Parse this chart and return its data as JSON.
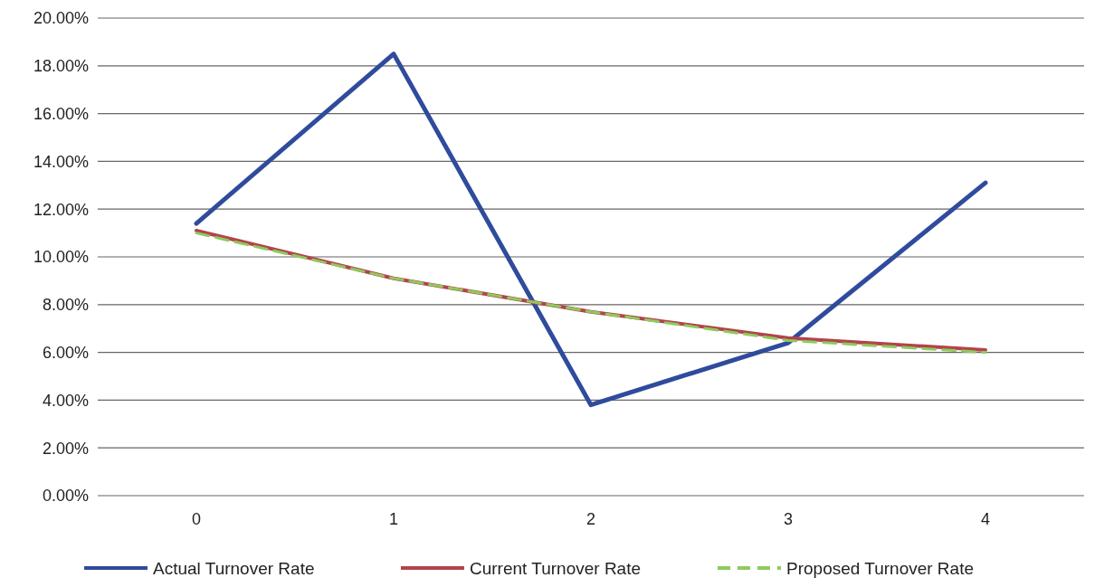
{
  "chart_data": {
    "type": "line",
    "categories": [
      "0",
      "1",
      "2",
      "3",
      "4"
    ],
    "series": [
      {
        "name": "Actual Turnover Rate",
        "color": "#2f4b9c",
        "values": [
          11.4,
          18.5,
          3.8,
          6.4,
          13.1
        ]
      },
      {
        "name": "Current Turnover Rate",
        "color": "#b2444c",
        "values": [
          11.1,
          9.1,
          7.7,
          6.6,
          6.1
        ]
      },
      {
        "name": "Proposed Turnover Rate",
        "color": "#8fca5c",
        "values": [
          11.0,
          9.1,
          7.7,
          6.5,
          6.0
        ],
        "line_style": "dashed"
      }
    ],
    "ylim": [
      0,
      20
    ],
    "yticks": [
      {
        "value": 0,
        "label": "0.00%"
      },
      {
        "value": 2,
        "label": "2.00%"
      },
      {
        "value": 4,
        "label": "4.00%"
      },
      {
        "value": 6,
        "label": "6.00%"
      },
      {
        "value": 8,
        "label": "8.00%"
      },
      {
        "value": 10,
        "label": "10.00%"
      },
      {
        "value": 12,
        "label": "12.00%"
      },
      {
        "value": 14,
        "label": "14.00%"
      },
      {
        "value": 16,
        "label": "16.00%"
      },
      {
        "value": 18,
        "label": "18.00%"
      },
      {
        "value": 20,
        "label": "20.00%"
      }
    ],
    "grid": "y",
    "legend": "bottom",
    "marker": "none"
  }
}
